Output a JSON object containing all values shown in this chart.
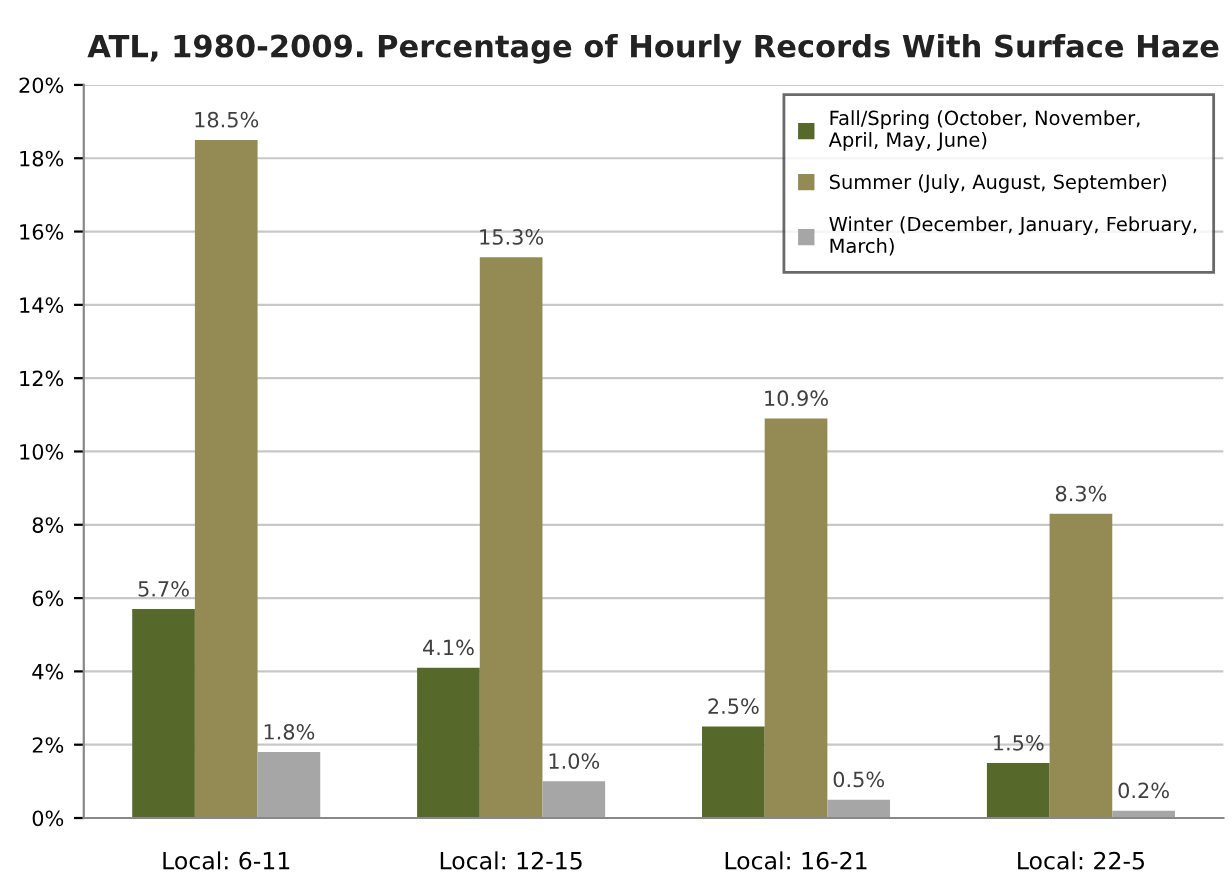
{
  "chart_data": {
    "type": "bar",
    "title": "ATL, 1980-2009. Percentage of Hourly Records With Surface Haze",
    "categories": [
      "Local: 6-11",
      "Local: 12-15",
      "Local: 16-21",
      "Local: 22-5"
    ],
    "series": [
      {
        "name": "Fall/Spring (October, November, April, May, June)",
        "color": "#56692b",
        "values": [
          5.7,
          4.1,
          2.5,
          1.5
        ],
        "value_labels": [
          "5.7%",
          "4.1%",
          "2.5%",
          "1.5%"
        ]
      },
      {
        "name": "Summer (July, August, September)",
        "color": "#948a54",
        "values": [
          18.5,
          15.3,
          10.9,
          8.3
        ],
        "value_labels": [
          "18.5%",
          "15.3%",
          "10.9%",
          "8.3%"
        ]
      },
      {
        "name": "Winter (December, January, February, March)",
        "color": "#a6a6a6",
        "values": [
          1.8,
          1.0,
          0.5,
          0.2
        ],
        "value_labels": [
          "1.8%",
          "1.0%",
          "0.5%",
          "0.2%"
        ]
      }
    ],
    "ylim": [
      0,
      20
    ],
    "yticks": [
      {
        "value": 0,
        "label": "0%"
      },
      {
        "value": 2,
        "label": "2%"
      },
      {
        "value": 4,
        "label": "4%"
      },
      {
        "value": 6,
        "label": "6%"
      },
      {
        "value": 8,
        "label": "8%"
      },
      {
        "value": 10,
        "label": "10%"
      },
      {
        "value": 12,
        "label": "12%"
      },
      {
        "value": 14,
        "label": "14%"
      },
      {
        "value": 16,
        "label": "16%"
      },
      {
        "value": 18,
        "label": "18%"
      },
      {
        "value": 20,
        "label": "20%"
      }
    ],
    "grid": "y",
    "legend": "top right"
  }
}
